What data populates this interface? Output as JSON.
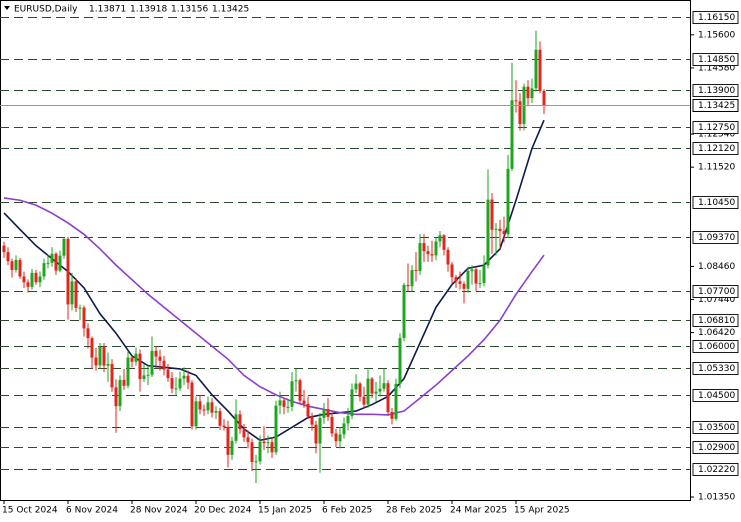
{
  "chart_data": {
    "type": "candlestick",
    "title": "EURUSD,Daily",
    "up_color": "#1fa51f",
    "down_color": "#e0261d",
    "level_color": "#2e4a2e",
    "price_line_color": "#9a9a9a",
    "ylim": [
      1.01258,
      1.16674
    ],
    "yticks": [
      {
        "value": 1.156,
        "label": "1.15600"
      },
      {
        "value": 1.1458,
        "label": "1.14580"
      },
      {
        "value": 1.1254,
        "label": "1.12540"
      },
      {
        "value": 1.1152,
        "label": "1.11520"
      },
      {
        "value": 1.0846,
        "label": "1.08460"
      },
      {
        "value": 1.0744,
        "label": "1.07440"
      },
      {
        "value": 1.0642,
        "label": "1.06420"
      },
      {
        "value": 1.0135,
        "label": "1.01350"
      }
    ],
    "levels": [
      {
        "value": 1.1615,
        "label": "1.16150"
      },
      {
        "value": 1.1485,
        "label": "1.14850"
      },
      {
        "value": 1.139,
        "label": "1.13900"
      },
      {
        "value": 1.1275,
        "label": "1.12750"
      },
      {
        "value": 1.1212,
        "label": "1.12120"
      },
      {
        "value": 1.1045,
        "label": "1.10450"
      },
      {
        "value": 1.0937,
        "label": "1.09370"
      },
      {
        "value": 1.077,
        "label": "1.07700"
      },
      {
        "value": 1.0681,
        "label": "1.06810"
      },
      {
        "value": 1.06,
        "label": "1.06000"
      },
      {
        "value": 1.0533,
        "label": "1.05330"
      },
      {
        "value": 1.045,
        "label": "1.04500"
      },
      {
        "value": 1.035,
        "label": "1.03500"
      },
      {
        "value": 1.029,
        "label": "1.02900"
      },
      {
        "value": 1.0222,
        "label": "1.02220"
      }
    ],
    "categories": [
      "15 Oct 2024",
      null,
      null,
      null,
      null,
      null,
      null,
      null,
      null,
      null,
      null,
      null,
      null,
      null,
      null,
      null,
      "6 Nov 2024",
      null,
      null,
      null,
      null,
      null,
      null,
      null,
      null,
      null,
      null,
      null,
      null,
      null,
      null,
      null,
      "28 Nov 2024",
      null,
      null,
      null,
      null,
      null,
      null,
      null,
      null,
      null,
      null,
      null,
      null,
      null,
      null,
      null,
      "20 Dec 2024",
      null,
      null,
      null,
      null,
      null,
      null,
      null,
      null,
      null,
      null,
      null,
      null,
      null,
      null,
      null,
      "15 Jan 2025",
      null,
      null,
      null,
      null,
      null,
      null,
      null,
      null,
      null,
      null,
      null,
      null,
      null,
      null,
      null,
      "6 Feb 2025",
      null,
      null,
      null,
      null,
      null,
      null,
      null,
      null,
      null,
      null,
      null,
      null,
      null,
      null,
      null,
      "28 Feb 2025",
      null,
      null,
      null,
      null,
      null,
      null,
      null,
      null,
      null,
      null,
      null,
      null,
      null,
      null,
      null,
      "24 Mar 2025",
      null,
      null,
      null,
      null,
      null,
      null,
      null,
      null,
      null,
      null,
      null,
      null,
      null,
      null,
      null,
      "15 Apr 2025",
      null,
      null,
      null,
      null,
      null,
      null,
      null
    ],
    "open": [
      1.091,
      1.089,
      1.0862,
      1.0835,
      1.0866,
      1.0815,
      1.0797,
      1.0783,
      1.0826,
      1.0797,
      1.0815,
      1.0856,
      1.0857,
      1.0885,
      1.0833,
      1.0879,
      1.0931,
      1.0729,
      1.08,
      1.0718,
      1.0719,
      1.0655,
      1.0625,
      1.0565,
      1.0541,
      1.0598,
      1.054,
      1.0545,
      1.0473,
      1.0415,
      1.0496,
      1.0478,
      1.0565,
      1.0552,
      1.0577,
      1.0499,
      1.051,
      1.0512,
      1.0586,
      1.0568,
      1.0555,
      1.0528,
      1.0502,
      1.0469,
      1.047,
      1.05,
      1.0509,
      1.0488,
      1.0353,
      1.043,
      1.0405,
      1.0402,
      1.0427,
      1.0395,
      1.04,
      1.0355,
      1.0351,
      1.0265,
      1.0308,
      1.039,
      1.0344,
      1.0319,
      1.0304,
      1.0243,
      1.0245,
      1.0306,
      1.0301,
      1.0304,
      1.0273,
      1.0417,
      1.0433,
      1.0413,
      1.0413,
      1.0492,
      1.0495,
      1.0432,
      1.0422,
      1.0383,
      1.0358,
      1.03,
      1.0379,
      1.0406,
      1.0382,
      1.0331,
      1.0307,
      1.0328,
      1.0362,
      1.0385,
      1.0467,
      1.0485,
      1.0444,
      1.042,
      1.05,
      1.0454,
      1.046,
      1.0469,
      1.0486,
      1.0397,
      1.0376,
      1.0484,
      1.0625,
      1.0789,
      1.0785,
      1.0835,
      1.0832,
      1.0918,
      1.0893,
      1.0884,
      1.088,
      1.0923,
      1.0942,
      1.0897,
      1.0852,
      1.0813,
      1.08,
      1.0792,
      1.0777,
      1.0832,
      1.0837,
      1.0793,
      1.0795,
      1.0849,
      1.1052,
      1.0959,
      1.0962,
      1.0955,
      1.0946,
      1.1147,
      1.1358,
      1.1355,
      1.1285,
      1.14,
      1.1365,
      1.1395,
      1.1514,
      1.13871
    ],
    "high": [
      1.0922,
      1.0905,
      1.087,
      1.088,
      1.0872,
      1.083,
      1.0806,
      1.0838,
      1.0835,
      1.083,
      1.087,
      1.0882,
      1.0905,
      1.089,
      1.0895,
      1.0937,
      1.0937,
      1.0826,
      1.081,
      1.0728,
      1.0725,
      1.067,
      1.063,
      1.0595,
      1.061,
      1.061,
      1.058,
      1.056,
      1.0498,
      1.051,
      1.053,
      1.0584,
      1.057,
      1.0596,
      1.059,
      1.0545,
      1.054,
      1.063,
      1.06,
      1.059,
      1.057,
      1.0545,
      1.052,
      1.0505,
      1.0522,
      1.0535,
      1.0525,
      1.0495,
      1.0445,
      1.0448,
      1.042,
      1.0445,
      1.044,
      1.0415,
      1.041,
      1.0375,
      1.037,
      1.032,
      1.0436,
      1.0402,
      1.036,
      1.034,
      1.0315,
      1.0265,
      1.0325,
      1.0353,
      1.0325,
      1.032,
      1.0432,
      1.046,
      1.044,
      1.0435,
      1.052,
      1.053,
      1.05,
      1.0465,
      1.0445,
      1.0395,
      1.037,
      1.0395,
      1.0425,
      1.044,
      1.0395,
      1.0345,
      1.035,
      1.038,
      1.041,
      1.0485,
      1.0513,
      1.049,
      1.0475,
      1.0528,
      1.0505,
      1.049,
      1.051,
      1.053,
      1.0495,
      1.041,
      1.05,
      1.064,
      1.0795,
      1.0855,
      1.085,
      1.089,
      1.0945,
      1.0945,
      1.091,
      1.0925,
      1.0935,
      1.0955,
      1.0945,
      1.0905,
      1.086,
      1.082,
      1.083,
      1.08,
      1.0845,
      1.085,
      1.0845,
      1.0835,
      1.088,
      1.1145,
      1.1072,
      1.098,
      1.099,
      1.1,
      1.119,
      1.1474,
      1.142,
      1.138,
      1.141,
      1.142,
      1.1425,
      1.1573,
      1.154,
      1.13918
    ],
    "low": [
      1.0872,
      1.085,
      1.0812,
      1.0827,
      1.0808,
      1.078,
      1.0765,
      1.0775,
      1.079,
      1.0782,
      1.0805,
      1.084,
      1.0845,
      1.082,
      1.0828,
      1.087,
      1.0682,
      1.071,
      1.0705,
      1.068,
      1.063,
      1.0593,
      1.053,
      1.0525,
      1.053,
      1.052,
      1.049,
      1.046,
      1.0333,
      1.04,
      1.0465,
      1.047,
      1.0535,
      1.054,
      1.046,
      1.049,
      1.048,
      1.0505,
      1.053,
      1.0525,
      1.051,
      1.049,
      1.0455,
      1.045,
      1.0462,
      1.048,
      1.0468,
      1.0343,
      1.0343,
      1.039,
      1.0385,
      1.039,
      1.038,
      1.0375,
      1.0342,
      1.034,
      1.0226,
      1.025,
      1.03,
      1.033,
      1.0305,
      1.0285,
      1.0215,
      1.0178,
      1.0235,
      1.028,
      1.027,
      1.0255,
      1.0265,
      1.039,
      1.039,
      1.0395,
      1.04,
      1.046,
      1.042,
      1.041,
      1.0375,
      1.034,
      1.027,
      1.021,
      1.036,
      1.037,
      1.032,
      1.029,
      1.0285,
      1.0315,
      1.034,
      1.0375,
      1.0455,
      1.043,
      1.041,
      1.041,
      1.044,
      1.043,
      1.0445,
      1.046,
      1.0385,
      1.0359,
      1.037,
      1.047,
      1.0615,
      1.077,
      1.077,
      1.08,
      1.082,
      1.086,
      1.086,
      1.086,
      1.0865,
      1.0905,
      1.088,
      1.083,
      1.0795,
      1.078,
      1.0775,
      1.0732,
      1.0765,
      1.079,
      1.077,
      1.078,
      1.0785,
      1.084,
      1.0885,
      1.088,
      1.09,
      1.092,
      1.0935,
      1.114,
      1.132,
      1.1265,
      1.1265,
      1.134,
      1.135,
      1.1385,
      1.138,
      1.13156
    ],
    "close": [
      1.089,
      1.0862,
      1.0835,
      1.0866,
      1.0815,
      1.0797,
      1.0783,
      1.0826,
      1.0797,
      1.0815,
      1.0856,
      1.0857,
      1.0885,
      1.0833,
      1.0879,
      1.0931,
      1.0729,
      1.08,
      1.0718,
      1.0719,
      1.0655,
      1.0625,
      1.0565,
      1.0541,
      1.0598,
      1.054,
      1.0545,
      1.0473,
      1.0415,
      1.0496,
      1.0478,
      1.0565,
      1.0552,
      1.0577,
      1.0499,
      1.051,
      1.0512,
      1.0586,
      1.0568,
      1.0555,
      1.0528,
      1.0502,
      1.0469,
      1.047,
      1.05,
      1.0509,
      1.0488,
      1.0353,
      1.043,
      1.0405,
      1.0402,
      1.0427,
      1.0395,
      1.04,
      1.0355,
      1.0351,
      1.0265,
      1.0308,
      1.039,
      1.0344,
      1.0319,
      1.0304,
      1.0243,
      1.0245,
      1.0306,
      1.0301,
      1.0304,
      1.0273,
      1.0417,
      1.0433,
      1.0413,
      1.0413,
      1.0492,
      1.0495,
      1.0432,
      1.0422,
      1.0383,
      1.0358,
      1.03,
      1.0379,
      1.0406,
      1.0382,
      1.0331,
      1.0307,
      1.0328,
      1.0362,
      1.0385,
      1.0467,
      1.0485,
      1.0444,
      1.042,
      1.05,
      1.0454,
      1.046,
      1.0469,
      1.0486,
      1.0397,
      1.0376,
      1.0484,
      1.0625,
      1.0789,
      1.0785,
      1.0835,
      1.0832,
      1.0918,
      1.0893,
      1.0884,
      1.088,
      1.0923,
      1.0942,
      1.0897,
      1.0852,
      1.0813,
      1.08,
      1.0792,
      1.0777,
      1.0832,
      1.0837,
      1.0793,
      1.0795,
      1.0849,
      1.1052,
      1.0959,
      1.0962,
      1.0955,
      1.0946,
      1.1147,
      1.1358,
      1.1355,
      1.1285,
      1.14,
      1.1365,
      1.1395,
      1.1514,
      1.1387,
      1.13425
    ],
    "moving_averages": [
      {
        "color": "#0d1a4d",
        "x": [
          0,
          4,
          8,
          12,
          16,
          20,
          24,
          28,
          32,
          36,
          40,
          44,
          48,
          52,
          56,
          60,
          64,
          68,
          72,
          76,
          80,
          84,
          88,
          92,
          96,
          100,
          104,
          108,
          112,
          116,
          120,
          124,
          128,
          132,
          135
        ],
        "values": [
          1.1011,
          1.096,
          1.091,
          1.087,
          1.083,
          1.078,
          1.07,
          1.064,
          1.057,
          1.054,
          1.0535,
          1.053,
          1.051,
          1.045,
          1.04,
          1.0345,
          1.031,
          1.032,
          1.035,
          1.038,
          1.039,
          1.0395,
          1.04,
          1.042,
          1.0445,
          1.05,
          1.061,
          1.072,
          1.079,
          1.084,
          1.085,
          1.09,
          1.105,
          1.121,
          1.1297
        ]
      },
      {
        "color": "#8a3fd1",
        "x": [
          0,
          4,
          8,
          12,
          16,
          20,
          24,
          28,
          32,
          36,
          40,
          44,
          48,
          52,
          56,
          60,
          64,
          68,
          72,
          76,
          80,
          84,
          88,
          92,
          96,
          100,
          104,
          108,
          112,
          116,
          120,
          124,
          128,
          132,
          135
        ],
        "values": [
          1.1057,
          1.105,
          1.1035,
          1.101,
          1.098,
          1.0945,
          1.09,
          1.085,
          1.0805,
          1.076,
          1.072,
          1.068,
          1.064,
          1.06,
          1.056,
          1.051,
          1.0475,
          1.045,
          1.043,
          1.0415,
          1.0405,
          1.0395,
          1.039,
          1.039,
          1.0388,
          1.04,
          1.044,
          1.048,
          1.0525,
          1.057,
          1.062,
          1.068,
          1.076,
          1.083,
          1.0881
        ]
      }
    ]
  }
}
